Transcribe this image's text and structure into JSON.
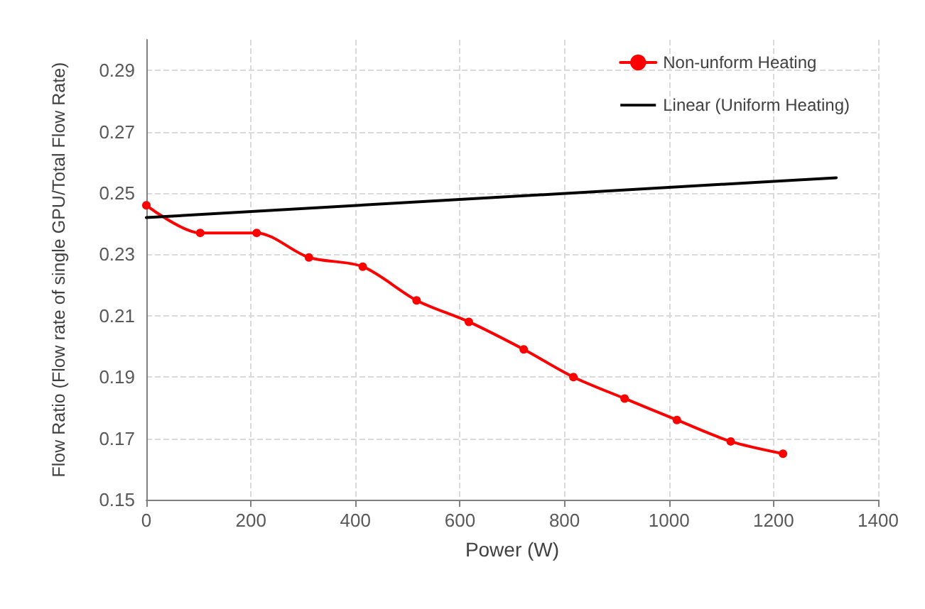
{
  "chart_data": {
    "type": "line",
    "xlabel": "Power (W)",
    "ylabel": "Flow Ratio (Flow rate of single GPU/Total Flow Rate)",
    "xlim": [
      0,
      1400
    ],
    "xticks": [
      0,
      200,
      400,
      600,
      800,
      1000,
      1200,
      1400
    ],
    "ylim": [
      0.15,
      0.3
    ],
    "yticks": [
      0.15,
      0.17,
      0.19,
      0.21,
      0.23,
      0.25,
      0.27,
      0.29
    ],
    "grid": true,
    "legend": "top right",
    "marker": "circle",
    "series": [
      {
        "name": "Non-unform Heating",
        "color": "#ff0000",
        "x": [
          0,
          103,
          211,
          311,
          414,
          517,
          617,
          722,
          817,
          915,
          1015,
          1118,
          1218
        ],
        "values": [
          0.246,
          0.237,
          0.237,
          0.229,
          0.226,
          0.215,
          0.208,
          0.199,
          0.19,
          0.183,
          0.176,
          0.169,
          0.165
        ]
      },
      {
        "name": "Linear (Uniform Heating)",
        "color": "#000000",
        "marker": "none",
        "x": [
          0,
          1320
        ],
        "values": [
          0.242,
          0.255
        ]
      }
    ]
  }
}
